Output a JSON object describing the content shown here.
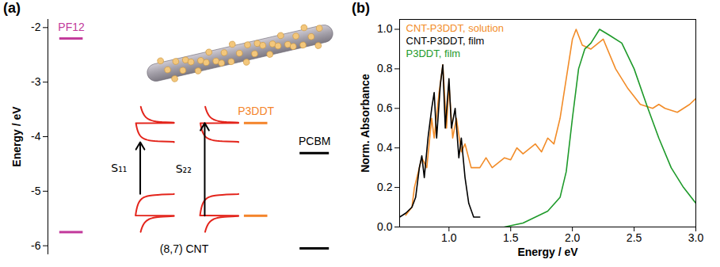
{
  "chart_data": [
    {
      "type": "energy_levels",
      "panel": "(a)",
      "ylabel": "Energy / eV",
      "ylim": [
        -6.15,
        -1.85
      ],
      "yticks": [
        -6,
        -5,
        -4,
        -3,
        -2
      ],
      "levels": [
        {
          "name": "PF12",
          "color": "#c2399b",
          "values": [
            -2.2,
            -5.75
          ]
        },
        {
          "name": "P3DDT",
          "color": "#f4842a",
          "values": [
            -3.75,
            -5.45
          ]
        },
        {
          "name": "PCBM",
          "color": "#000000",
          "values": [
            -4.3,
            -6.05
          ]
        }
      ],
      "cnt": {
        "name": "(8,7) CNT",
        "color": "#e3241b",
        "van_hove": {
          "valence": [
            -5.05,
            -5.45
          ],
          "conduction": [
            -4.1,
            -3.75
          ]
        },
        "transitions": [
          {
            "name": "S₁₁",
            "from": -5.05,
            "to": -4.1
          },
          {
            "name": "S₂₂",
            "from": -5.45,
            "to": -3.75
          }
        ]
      }
    },
    {
      "type": "line",
      "panel": "(b)",
      "xlabel": "Energy / eV",
      "ylabel": "Norm. Absorbance",
      "xlim": [
        0.6,
        3.0
      ],
      "xticks": [
        {
          "value": 1,
          "label": "1.0"
        },
        1.5,
        {
          "value": 2,
          "label": "2.0"
        },
        2.5,
        {
          "value": 3,
          "label": "3.0"
        }
      ],
      "ylim": [
        0,
        1.05
      ],
      "yticks": [
        {
          "value": 0,
          "label": "0.0"
        },
        0.2,
        0.4,
        0.6,
        0.8,
        {
          "value": 1,
          "label": "1.0"
        }
      ],
      "legend": "upper left",
      "series": [
        {
          "name": "CNT-P3DDT, solution",
          "color": "#f28c28",
          "x": [
            0.65,
            0.7,
            0.72,
            0.78,
            0.82,
            0.86,
            0.88,
            0.92,
            0.95,
            0.98,
            1.0,
            1.03,
            1.06,
            1.1,
            1.13,
            1.18,
            1.25,
            1.3,
            1.35,
            1.45,
            1.5,
            1.55,
            1.6,
            1.7,
            1.75,
            1.8,
            1.85,
            1.9,
            1.95,
            2.0,
            2.03,
            2.08,
            2.15,
            2.25,
            2.35,
            2.45,
            2.55,
            2.65,
            2.7,
            2.75,
            2.85,
            2.95,
            3.0
          ],
          "values": [
            0.06,
            0.1,
            0.2,
            0.35,
            0.3,
            0.55,
            0.45,
            0.68,
            0.82,
            0.5,
            0.72,
            0.45,
            0.55,
            0.38,
            0.42,
            0.3,
            0.3,
            0.35,
            0.3,
            0.35,
            0.34,
            0.4,
            0.37,
            0.42,
            0.38,
            0.45,
            0.42,
            0.55,
            0.75,
            0.95,
            1.0,
            0.92,
            0.9,
            0.95,
            0.8,
            0.7,
            0.62,
            0.6,
            0.62,
            0.6,
            0.58,
            0.62,
            0.65
          ]
        },
        {
          "name": "CNT-P3DDT, film",
          "color": "#000000",
          "x": [
            0.6,
            0.65,
            0.7,
            0.73,
            0.76,
            0.78,
            0.8,
            0.83,
            0.86,
            0.88,
            0.9,
            0.93,
            0.95,
            0.97,
            1.0,
            1.02,
            1.05,
            1.08,
            1.1,
            1.13,
            1.16,
            1.2,
            1.25
          ],
          "values": [
            0.05,
            0.07,
            0.1,
            0.15,
            0.3,
            0.36,
            0.25,
            0.45,
            0.6,
            0.68,
            0.45,
            0.72,
            0.82,
            0.5,
            0.75,
            0.5,
            0.6,
            0.35,
            0.45,
            0.25,
            0.12,
            0.05,
            0.05
          ]
        },
        {
          "name": "P3DDT, film",
          "color": "#1e9a2a",
          "x": [
            1.45,
            1.6,
            1.8,
            1.9,
            1.95,
            2.0,
            2.05,
            2.1,
            2.15,
            2.22,
            2.3,
            2.4,
            2.5,
            2.6,
            2.7,
            2.8,
            2.9,
            3.0
          ],
          "values": [
            0.0,
            0.02,
            0.08,
            0.15,
            0.28,
            0.55,
            0.8,
            0.9,
            0.93,
            1.0,
            0.97,
            0.93,
            0.8,
            0.62,
            0.45,
            0.3,
            0.2,
            0.12
          ]
        }
      ]
    }
  ]
}
